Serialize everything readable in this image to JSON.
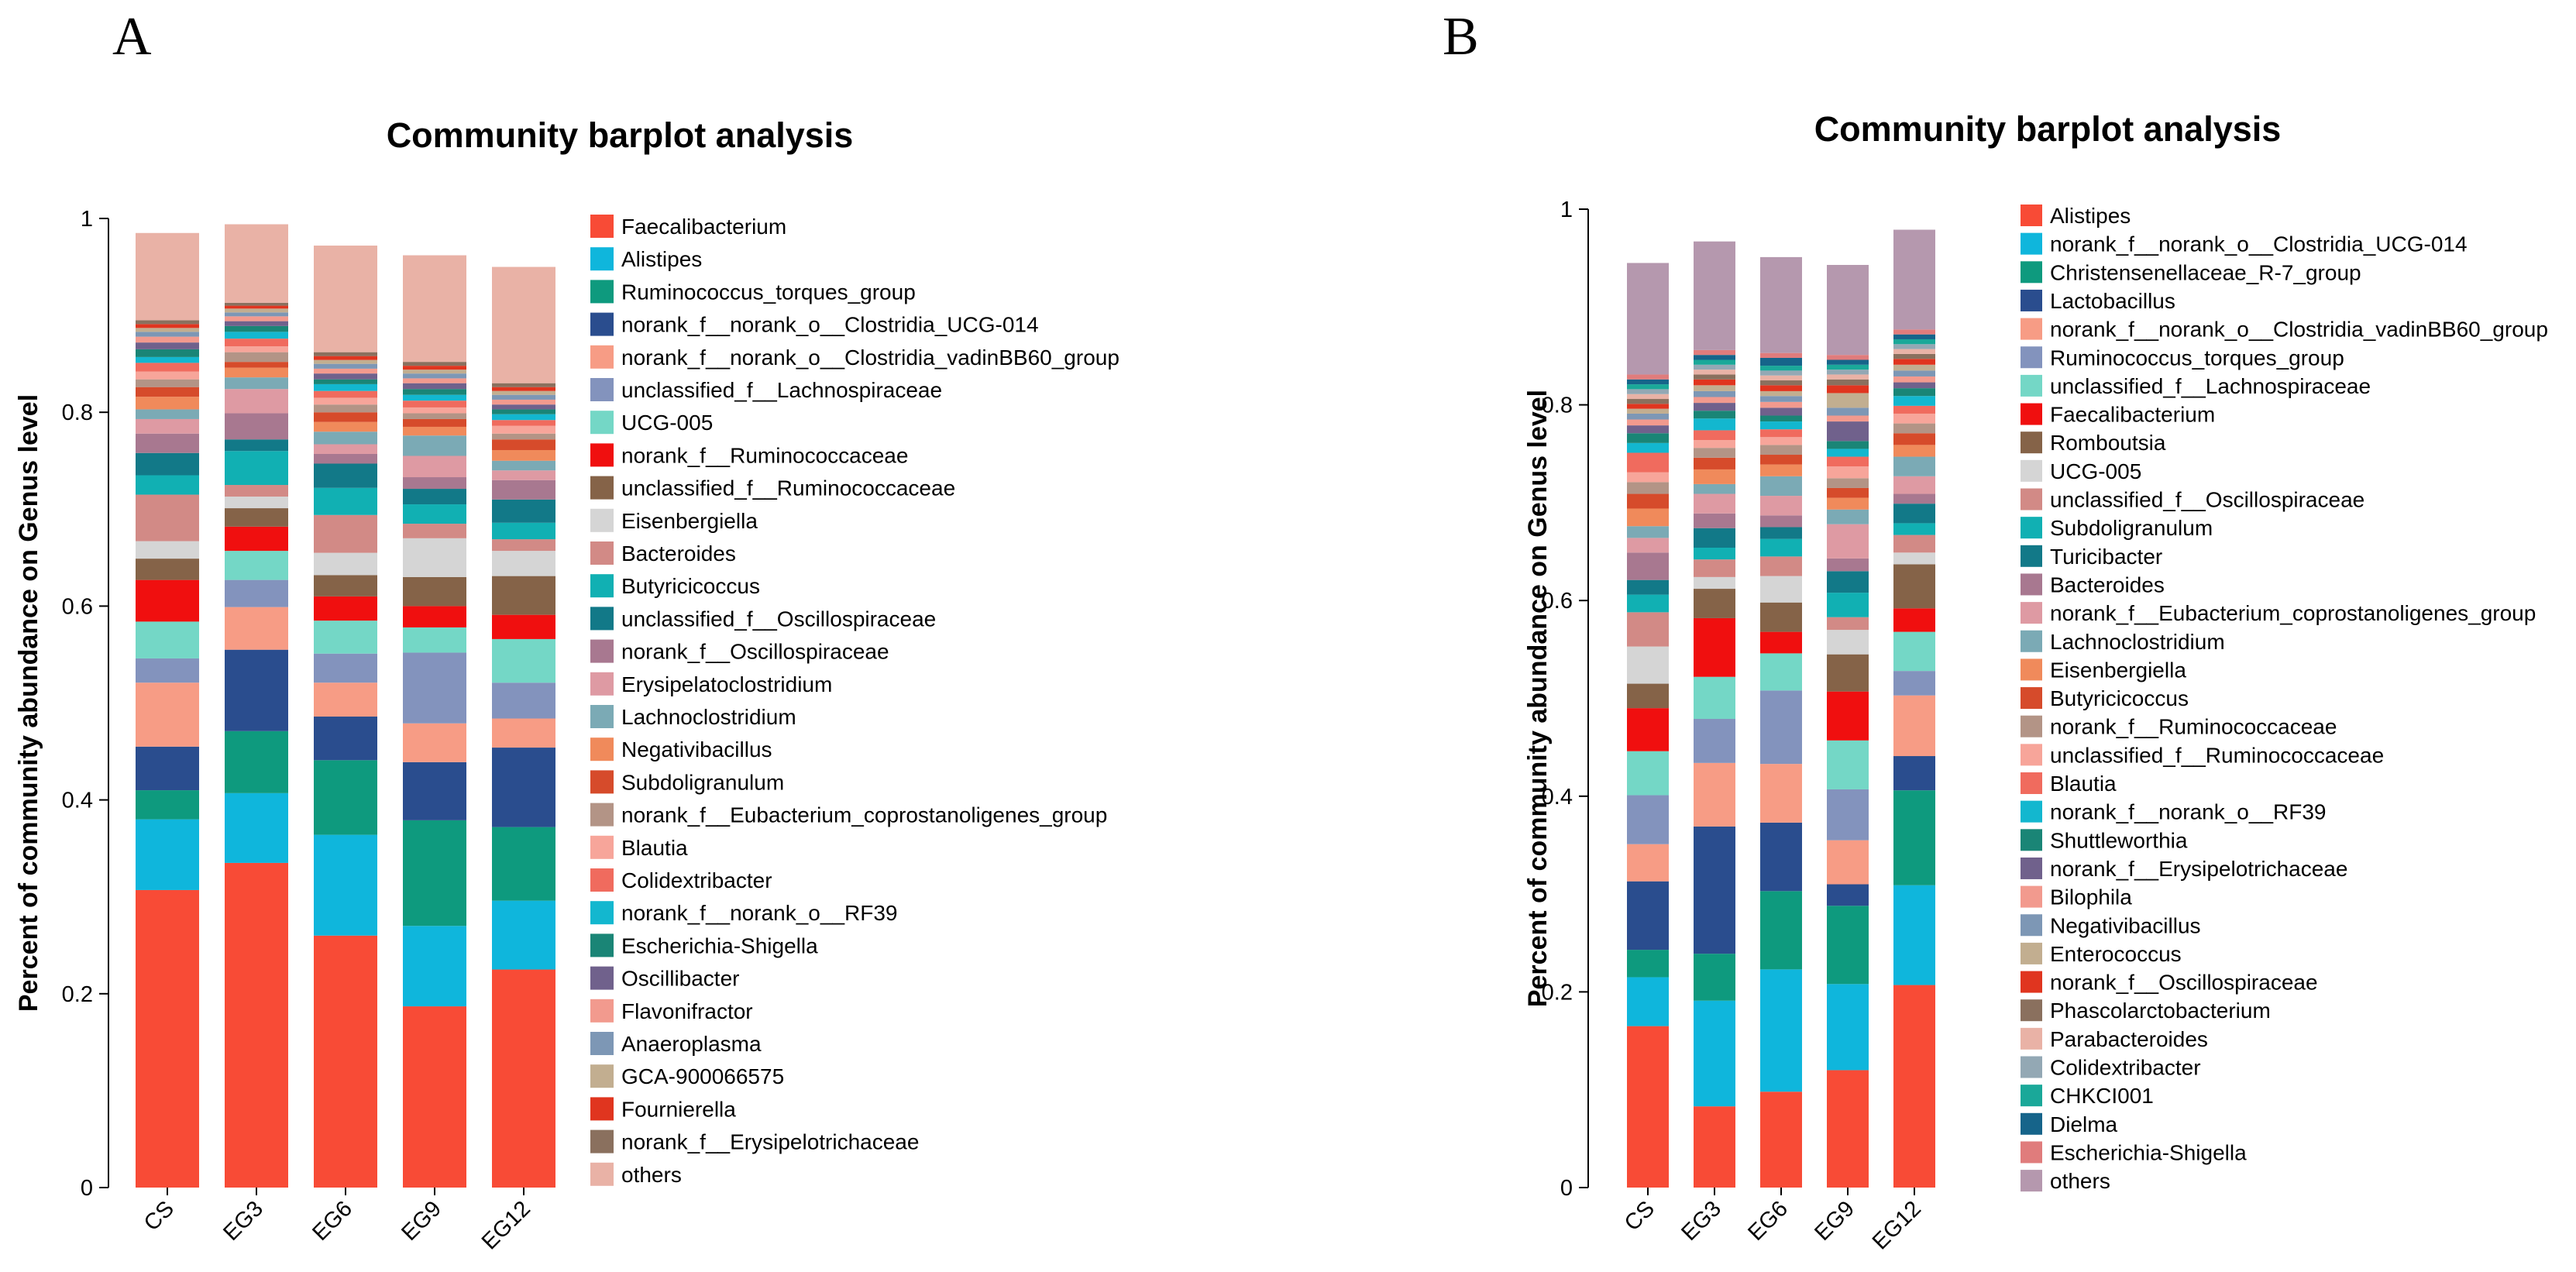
{
  "figure": {
    "panels": [
      "A",
      "B"
    ]
  },
  "chart_data": [
    {
      "panel": "A",
      "type": "bar",
      "stacked": true,
      "title": "Community barplot analysis",
      "xlabel": "",
      "ylabel": "Percent of community abundance on Genus level",
      "ylim": [
        0,
        1
      ],
      "yticks": [
        "0",
        "0.2",
        "0.4",
        "0.6",
        "0.8",
        "1"
      ],
      "categories": [
        "CS",
        "EG3",
        "EG6",
        "EG9",
        "EG12"
      ],
      "legend_position": "right",
      "series": [
        {
          "name": "Faecalibacterium",
          "color": "#F84B36",
          "values": [
            0.307,
            0.335,
            0.26,
            0.187,
            0.225
          ]
        },
        {
          "name": "Alistipes",
          "color": "#0FB6DC",
          "values": [
            0.073,
            0.072,
            0.104,
            0.083,
            0.071
          ]
        },
        {
          "name": "Ruminococcus_torques_group",
          "color": "#0E9A7E",
          "values": [
            0.03,
            0.064,
            0.077,
            0.109,
            0.076
          ]
        },
        {
          "name": "norank_f__norank_o__Clostridia_UCG-014",
          "color": "#2A4D8E",
          "values": [
            0.045,
            0.084,
            0.045,
            0.06,
            0.082
          ]
        },
        {
          "name": "norank_f__norank_o__Clostridia_vadinBB60_group",
          "color": "#F79C85",
          "values": [
            0.066,
            0.044,
            0.035,
            0.04,
            0.03
          ]
        },
        {
          "name": "unclassified_f__Lachnospiraceae",
          "color": "#8393BD",
          "values": [
            0.025,
            0.028,
            0.03,
            0.073,
            0.037
          ]
        },
        {
          "name": "UCG-005",
          "color": "#74D7C6",
          "values": [
            0.038,
            0.03,
            0.034,
            0.026,
            0.045
          ]
        },
        {
          "name": "norank_f__Ruminococcaceae",
          "color": "#F00F0F",
          "values": [
            0.043,
            0.025,
            0.025,
            0.022,
            0.025
          ]
        },
        {
          "name": "unclassified_f__Ruminococcaceae",
          "color": "#856348",
          "values": [
            0.022,
            0.019,
            0.022,
            0.03,
            0.04
          ]
        },
        {
          "name": "Eisenbergiella",
          "color": "#D5D5D5",
          "values": [
            0.018,
            0.012,
            0.023,
            0.04,
            0.026
          ]
        },
        {
          "name": "Bacteroides",
          "color": "#D28A86",
          "values": [
            0.048,
            0.012,
            0.039,
            0.015,
            0.012
          ]
        },
        {
          "name": "Butyricicoccus",
          "color": "#11B0B3",
          "values": [
            0.02,
            0.035,
            0.028,
            0.02,
            0.017
          ]
        },
        {
          "name": "unclassified_f__Oscillospiraceae",
          "color": "#127988",
          "values": [
            0.023,
            0.012,
            0.025,
            0.016,
            0.024
          ]
        },
        {
          "name": "norank_f__Oscillospiraceae",
          "color": "#A87890",
          "values": [
            0.02,
            0.027,
            0.01,
            0.012,
            0.02
          ]
        },
        {
          "name": "Erysipelatoclostridium",
          "color": "#DE9AA3",
          "values": [
            0.015,
            0.025,
            0.01,
            0.022,
            0.01
          ]
        },
        {
          "name": "Lachnoclostridium",
          "color": "#7BAAB5",
          "values": [
            0.01,
            0.012,
            0.013,
            0.021,
            0.01
          ]
        },
        {
          "name": "Negativibacillus",
          "color": "#F08A5B",
          "values": [
            0.013,
            0.01,
            0.01,
            0.009,
            0.011
          ]
        },
        {
          "name": "Subdoligranulum",
          "color": "#D64B2B",
          "values": [
            0.01,
            0.006,
            0.01,
            0.008,
            0.011
          ]
        },
        {
          "name": "norank_f__Eubacterium_coprostanoligenes_group",
          "color": "#B39486",
          "values": [
            0.008,
            0.01,
            0.008,
            0.006,
            0.006
          ]
        },
        {
          "name": "Blautia",
          "color": "#F7A59A",
          "values": [
            0.008,
            0.006,
            0.007,
            0.006,
            0.008
          ]
        },
        {
          "name": "Colidextribacter",
          "color": "#F06B5E",
          "values": [
            0.009,
            0.008,
            0.007,
            0.007,
            0.006
          ]
        },
        {
          "name": "norank_f__norank_o__RF39",
          "color": "#13B7CF",
          "values": [
            0.006,
            0.007,
            0.007,
            0.006,
            0.006
          ]
        },
        {
          "name": "Escherichia-Shigella",
          "color": "#1A8576",
          "values": [
            0.008,
            0.006,
            0.005,
            0.006,
            0.005
          ]
        },
        {
          "name": "Oscillibacter",
          "color": "#70618C",
          "values": [
            0.007,
            0.005,
            0.006,
            0.006,
            0.005
          ]
        },
        {
          "name": "Flavonifractor",
          "color": "#F29A8E",
          "values": [
            0.006,
            0.005,
            0.005,
            0.005,
            0.005
          ]
        },
        {
          "name": "Anaeroplasma",
          "color": "#7D97B5",
          "values": [
            0.005,
            0.004,
            0.005,
            0.005,
            0.005
          ]
        },
        {
          "name": "GCA-900066575",
          "color": "#C2AE90",
          "values": [
            0.004,
            0.004,
            0.004,
            0.004,
            0.004
          ]
        },
        {
          "name": "Fournierella",
          "color": "#E0351F",
          "values": [
            0.004,
            0.003,
            0.004,
            0.004,
            0.004
          ]
        },
        {
          "name": "norank_f__Erysipelotrichaceae",
          "color": "#8A705E",
          "values": [
            0.004,
            0.003,
            0.004,
            0.004,
            0.004
          ]
        },
        {
          "name": "others",
          "color": "#E9B2A6",
          "values": [
            0.09,
            0.081,
            0.11,
            0.11,
            0.12
          ]
        }
      ]
    },
    {
      "panel": "B",
      "type": "bar",
      "stacked": true,
      "title": "Community barplot analysis",
      "xlabel": "",
      "ylabel": "Percent of community abundance on Genus level",
      "ylim": [
        0,
        1
      ],
      "yticks": [
        "0",
        "0.2",
        "0.4",
        "0.6",
        "0.8",
        "1"
      ],
      "categories": [
        "CS",
        "EG3",
        "EG6",
        "EG9",
        "EG12"
      ],
      "legend_position": "right",
      "series": [
        {
          "name": "Alistipes",
          "color": "#F84B36",
          "values": [
            0.165,
            0.083,
            0.098,
            0.12,
            0.207
          ]
        },
        {
          "name": "norank_f__norank_o__Clostridia_UCG-014",
          "color": "#0FB6DC",
          "values": [
            0.05,
            0.108,
            0.125,
            0.088,
            0.102
          ]
        },
        {
          "name": "Christensenellaceae_R-7_group",
          "color": "#0E9A7E",
          "values": [
            0.028,
            0.048,
            0.08,
            0.08,
            0.097
          ]
        },
        {
          "name": "Lactobacillus",
          "color": "#2A4D8E",
          "values": [
            0.07,
            0.13,
            0.07,
            0.022,
            0.035
          ]
        },
        {
          "name": "norank_f__norank_o__Clostridia_vadinBB60_group",
          "color": "#F79C85",
          "values": [
            0.038,
            0.065,
            0.06,
            0.045,
            0.062
          ]
        },
        {
          "name": "Ruminococcus_torques_group",
          "color": "#8393BD",
          "values": [
            0.05,
            0.045,
            0.075,
            0.052,
            0.025
          ]
        },
        {
          "name": "unclassified_f__Lachnospiraceae",
          "color": "#74D7C6",
          "values": [
            0.045,
            0.043,
            0.038,
            0.05,
            0.04
          ]
        },
        {
          "name": "Faecalibacterium",
          "color": "#F00F0F",
          "values": [
            0.044,
            0.06,
            0.022,
            0.05,
            0.024
          ]
        },
        {
          "name": "Romboutsia",
          "color": "#856348",
          "values": [
            0.025,
            0.03,
            0.03,
            0.038,
            0.045
          ]
        },
        {
          "name": "UCG-005",
          "color": "#D5D5D5",
          "values": [
            0.038,
            0.012,
            0.027,
            0.025,
            0.012
          ]
        },
        {
          "name": "unclassified_f__Oscillospiraceae",
          "color": "#D28A86",
          "values": [
            0.035,
            0.018,
            0.02,
            0.013,
            0.018
          ]
        },
        {
          "name": "Subdoligranulum",
          "color": "#11B0B3",
          "values": [
            0.018,
            0.012,
            0.018,
            0.025,
            0.012
          ]
        },
        {
          "name": "Turicibacter",
          "color": "#127988",
          "values": [
            0.015,
            0.02,
            0.012,
            0.022,
            0.02
          ]
        },
        {
          "name": "Bacteroides",
          "color": "#A87890",
          "values": [
            0.028,
            0.015,
            0.012,
            0.013,
            0.01
          ]
        },
        {
          "name": "norank_f__Eubacterium_coprostanoligenes_group",
          "color": "#DE9AA3",
          "values": [
            0.015,
            0.02,
            0.02,
            0.035,
            0.018
          ]
        },
        {
          "name": "Lachnoclostridium",
          "color": "#7BAAB5",
          "values": [
            0.012,
            0.01,
            0.02,
            0.015,
            0.02
          ]
        },
        {
          "name": "Eisenbergiella",
          "color": "#F08A5B",
          "values": [
            0.018,
            0.015,
            0.012,
            0.012,
            0.012
          ]
        },
        {
          "name": "Butyricicoccus",
          "color": "#D64B2B",
          "values": [
            0.015,
            0.012,
            0.01,
            0.01,
            0.012
          ]
        },
        {
          "name": "norank_f__Ruminococcaceae",
          "color": "#B39486",
          "values": [
            0.012,
            0.01,
            0.01,
            0.01,
            0.01
          ]
        },
        {
          "name": "unclassified_f__Ruminococcaceae",
          "color": "#F7A59A",
          "values": [
            0.01,
            0.008,
            0.008,
            0.012,
            0.01
          ]
        },
        {
          "name": "Blautia",
          "color": "#F06B5E",
          "values": [
            0.02,
            0.01,
            0.008,
            0.01,
            0.008
          ]
        },
        {
          "name": "norank_f__norank_o__RF39",
          "color": "#13B7CF",
          "values": [
            0.01,
            0.012,
            0.008,
            0.008,
            0.01
          ]
        },
        {
          "name": "Shuttleworthia",
          "color": "#1A8576",
          "values": [
            0.01,
            0.008,
            0.006,
            0.008,
            0.008
          ]
        },
        {
          "name": "norank_f__Erysipelotrichaceae",
          "color": "#70618C",
          "values": [
            0.008,
            0.008,
            0.008,
            0.02,
            0.006
          ]
        },
        {
          "name": "Bilophila",
          "color": "#F29A8E",
          "values": [
            0.006,
            0.006,
            0.006,
            0.006,
            0.006
          ]
        },
        {
          "name": "Negativibacillus",
          "color": "#7D97B5",
          "values": [
            0.006,
            0.006,
            0.006,
            0.008,
            0.006
          ]
        },
        {
          "name": "Enterococcus",
          "color": "#C2AE90",
          "values": [
            0.005,
            0.006,
            0.005,
            0.015,
            0.006
          ]
        },
        {
          "name": "norank_f__Oscillospiraceae",
          "color": "#E0351F",
          "values": [
            0.005,
            0.006,
            0.006,
            0.008,
            0.006
          ]
        },
        {
          "name": "Phascolarctobacterium",
          "color": "#8A705E",
          "values": [
            0.005,
            0.005,
            0.005,
            0.006,
            0.005
          ]
        },
        {
          "name": "Parabacteroides",
          "color": "#E9B2A6",
          "values": [
            0.005,
            0.005,
            0.005,
            0.005,
            0.005
          ]
        },
        {
          "name": "Colidextribacter",
          "color": "#93A8B4",
          "values": [
            0.005,
            0.005,
            0.005,
            0.005,
            0.005
          ]
        },
        {
          "name": "CHKCI001",
          "color": "#1AA899",
          "values": [
            0.005,
            0.005,
            0.005,
            0.005,
            0.005
          ]
        },
        {
          "name": "Dielma",
          "color": "#16648A",
          "values": [
            0.005,
            0.005,
            0.008,
            0.005,
            0.005
          ]
        },
        {
          "name": "Escherichia-Shigella",
          "color": "#E07C7C",
          "values": [
            0.005,
            0.005,
            0.005,
            0.005,
            0.005
          ]
        },
        {
          "name": "others",
          "color": "#B598AE",
          "values": [
            0.114,
            0.111,
            0.098,
            0.092,
            0.102
          ]
        }
      ]
    }
  ]
}
